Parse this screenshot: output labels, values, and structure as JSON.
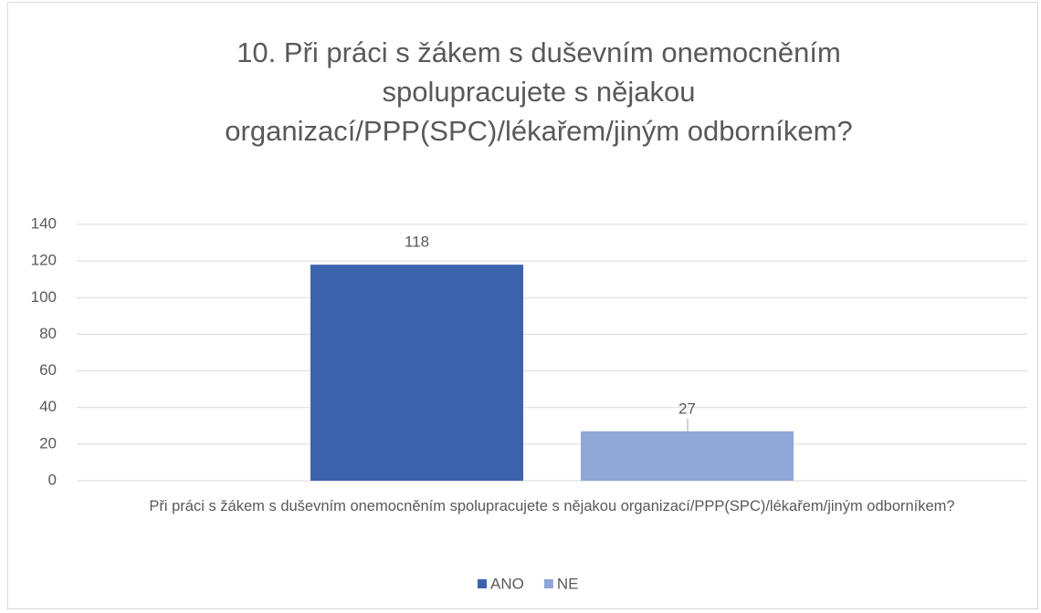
{
  "chart_data": {
    "type": "bar",
    "title": "10. Při práci s žákem s duševním onemocněním spolupracujete s nějakou organizací/PPP(SPC)/lékařem/jiným odborníkem?",
    "categories": [
      "Při práci s žákem s duševním onemocněním spolupracujete s nějakou organizací/PPP(SPC)/lékařem/jiným odborníkem?"
    ],
    "series": [
      {
        "name": "ANO",
        "color": "#3c64ae",
        "values": [
          118
        ]
      },
      {
        "name": "NE",
        "color": "#8fa6d6",
        "values": [
          27
        ]
      }
    ],
    "ylim": [
      0,
      140
    ],
    "yticks": [
      0,
      20,
      40,
      60,
      80,
      100,
      120,
      140
    ],
    "grid": true,
    "legend": "bottom"
  }
}
